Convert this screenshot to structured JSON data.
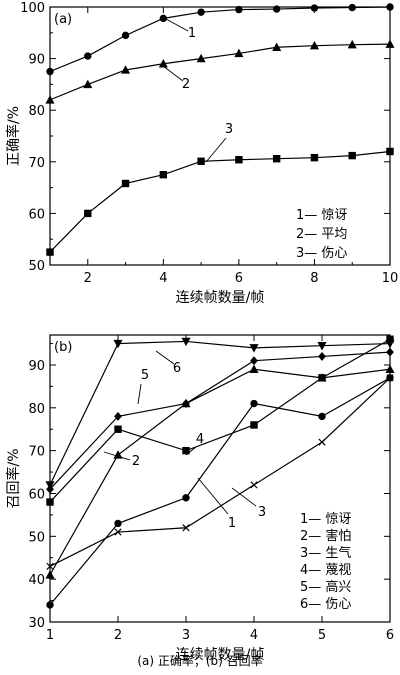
{
  "caption": "(a) 正确率；(b) 召回率",
  "chart_data": [
    {
      "type": "line",
      "panel_label": "(a)",
      "xlabel": "连续帧数量/帧",
      "ylabel": "正确率/%",
      "xlim": [
        1,
        10
      ],
      "ylim": [
        50,
        100
      ],
      "xticks": [
        2,
        4,
        6,
        8,
        10
      ],
      "yticks": [
        50,
        60,
        70,
        80,
        90,
        100
      ],
      "x": [
        1,
        2,
        3,
        4,
        5,
        6,
        7,
        8,
        9,
        10
      ],
      "legend_position": "bottom-right",
      "series": [
        {
          "name": "惊讶",
          "id": "1",
          "marker": "circle",
          "values": [
            87.5,
            90.5,
            94.5,
            97.8,
            99.0,
            99.5,
            99.6,
            99.8,
            99.9,
            100.0
          ]
        },
        {
          "name": "平均",
          "id": "2",
          "marker": "triangle",
          "values": [
            82.0,
            85.0,
            87.8,
            89.0,
            90.0,
            91.0,
            92.2,
            92.5,
            92.7,
            92.8
          ]
        },
        {
          "name": "伤心",
          "id": "3",
          "marker": "square",
          "values": [
            52.5,
            60.0,
            65.8,
            67.5,
            70.1,
            70.4,
            70.6,
            70.8,
            71.2,
            72.0
          ]
        }
      ]
    },
    {
      "type": "line",
      "panel_label": "(b)",
      "xlabel": "连续帧数量/帧",
      "ylabel": "召回率/%",
      "xlim": [
        1,
        6
      ],
      "ylim": [
        30,
        97
      ],
      "xticks": [
        1,
        2,
        3,
        4,
        5,
        6
      ],
      "yticks": [
        30,
        40,
        50,
        60,
        70,
        80,
        90
      ],
      "x": [
        1,
        2,
        3,
        4,
        5,
        6
      ],
      "legend_position": "bottom-right",
      "series": [
        {
          "name": "惊讶",
          "id": "1",
          "marker": "circle",
          "values": [
            34,
            53,
            59,
            81,
            78,
            87
          ]
        },
        {
          "name": "害怕",
          "id": "2",
          "marker": "triangle",
          "values": [
            41,
            69,
            81,
            89,
            87,
            89
          ]
        },
        {
          "name": "生气",
          "id": "3",
          "marker": "x",
          "values": [
            43,
            51,
            52,
            62,
            72,
            87
          ]
        },
        {
          "name": "蔑视",
          "id": "4",
          "marker": "square",
          "values": [
            58,
            75,
            70,
            76,
            87,
            96
          ]
        },
        {
          "name": "高兴",
          "id": "5",
          "marker": "diamond",
          "values": [
            61,
            78,
            81,
            91,
            92,
            93
          ]
        },
        {
          "name": "伤心",
          "id": "6",
          "marker": "triangle-down",
          "values": [
            62,
            95,
            95.5,
            94,
            94.5,
            95
          ]
        }
      ]
    }
  ]
}
